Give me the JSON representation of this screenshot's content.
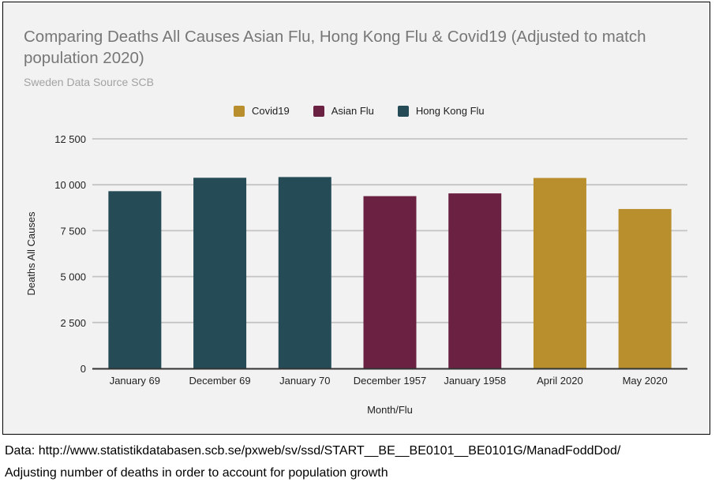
{
  "chart_data": {
    "type": "bar",
    "title": "Comparing Deaths All Causes Asian Flu, Hong Kong Flu & Covid19 (Adjusted to match population 2020)",
    "subtitle": "Sweden Data Source SCB",
    "xlabel": "Month/Flu",
    "ylabel": "Deaths All Causes",
    "ylim": [
      0,
      12500
    ],
    "yticks": [
      0,
      2500,
      5000,
      7500,
      10000,
      12500
    ],
    "ytick_labels": [
      "0",
      "2 500",
      "5 000",
      "7 500",
      "10 000",
      "12 500"
    ],
    "categories": [
      "January 69",
      "December 69",
      "January 70",
      "December 1957",
      "January 1958",
      "April 2020",
      "May 2020"
    ],
    "values": [
      9650,
      10380,
      10420,
      9380,
      9530,
      10370,
      8680
    ],
    "bar_series": [
      "Hong Kong Flu",
      "Hong Kong Flu",
      "Hong Kong Flu",
      "Asian Flu",
      "Asian Flu",
      "Covid19",
      "Covid19"
    ],
    "series": [
      {
        "name": "Covid19",
        "color": "#b98f2e"
      },
      {
        "name": "Asian Flu",
        "color": "#6b2142"
      },
      {
        "name": "Hong Kong Flu",
        "color": "#254b57"
      }
    ],
    "legend_position": "top",
    "grid": true
  },
  "footer": {
    "line1": "Data: http://www.statistikdatabasen.scb.se/pxweb/sv/ssd/START__BE__BE0101__BE0101G/ManadFoddDod/",
    "line2": "Adjusting number of deaths in order to account for population growth"
  }
}
